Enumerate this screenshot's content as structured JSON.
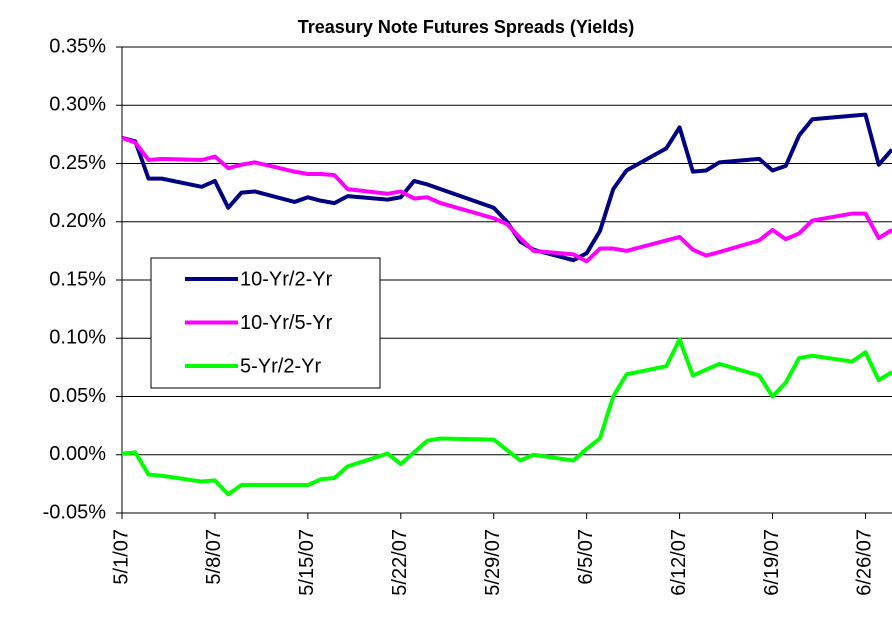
{
  "chart_data": {
    "type": "line",
    "title": "Treasury Note Futures Spreads (Yields)",
    "x": [
      "5/1/07",
      "5/2/07",
      "5/3/07",
      "5/4/07",
      "5/7/07",
      "5/8/07",
      "5/9/07",
      "5/10/07",
      "5/11/07",
      "5/14/07",
      "5/15/07",
      "5/16/07",
      "5/17/07",
      "5/18/07",
      "5/21/07",
      "5/22/07",
      "5/23/07",
      "5/24/07",
      "5/25/07",
      "5/29/07",
      "5/30/07",
      "5/31/07",
      "6/1/07",
      "6/4/07",
      "6/5/07",
      "6/6/07",
      "6/7/07",
      "6/8/07",
      "6/11/07",
      "6/12/07",
      "6/13/07",
      "6/14/07",
      "6/15/07",
      "6/18/07",
      "6/19/07",
      "6/20/07",
      "6/21/07",
      "6/22/07",
      "6/25/07",
      "6/26/07",
      "6/27/07",
      "6/28/07"
    ],
    "series": [
      {
        "name": "10-Yr/2-Yr",
        "color": "#000080",
        "values": [
          0.272,
          0.269,
          0.237,
          0.237,
          0.23,
          0.235,
          0.212,
          0.225,
          0.226,
          0.217,
          0.221,
          0.218,
          0.216,
          0.222,
          0.219,
          0.221,
          0.235,
          0.232,
          0.228,
          0.212,
          0.2,
          0.183,
          0.176,
          0.167,
          0.173,
          0.192,
          0.228,
          0.244,
          0.263,
          0.281,
          0.243,
          0.244,
          0.251,
          0.254,
          0.244,
          0.248,
          0.274,
          0.288,
          0.291,
          0.292,
          0.249,
          0.262
        ]
      },
      {
        "name": "10-Yr/5-Yr",
        "color": "#ff00ff",
        "values": [
          0.272,
          0.268,
          0.253,
          0.254,
          0.253,
          0.256,
          0.246,
          0.249,
          0.251,
          0.243,
          0.241,
          0.241,
          0.24,
          0.228,
          0.224,
          0.226,
          0.22,
          0.221,
          0.216,
          0.203,
          0.198,
          0.186,
          0.175,
          0.172,
          0.166,
          0.177,
          0.177,
          0.175,
          0.184,
          0.187,
          0.176,
          0.171,
          0.174,
          0.184,
          0.193,
          0.185,
          0.19,
          0.201,
          0.207,
          0.207,
          0.186,
          0.193
        ]
      },
      {
        "name": "5-Yr/2-Yr",
        "color": "#00ff00",
        "values": [
          0.001,
          0.002,
          -0.017,
          -0.018,
          -0.023,
          -0.022,
          -0.034,
          -0.026,
          -0.026,
          -0.026,
          -0.026,
          -0.021,
          -0.02,
          -0.01,
          0.001,
          -0.008,
          0.002,
          0.012,
          0.014,
          0.013,
          0.004,
          -0.005,
          0.0,
          -0.005,
          0.005,
          0.014,
          0.05,
          0.069,
          0.076,
          0.099,
          0.068,
          0.073,
          0.078,
          0.068,
          0.05,
          0.062,
          0.083,
          0.085,
          0.08,
          0.088,
          0.064,
          0.071
        ]
      }
    ],
    "xlim": [
      "5/1/07",
      "6/28/07"
    ],
    "xticks": [
      "5/1/07",
      "5/8/07",
      "5/15/07",
      "5/22/07",
      "5/29/07",
      "6/5/07",
      "6/12/07",
      "6/19/07",
      "6/26/07"
    ],
    "ylim": [
      -0.05,
      0.35
    ],
    "yticks": [
      {
        "value": -0.05,
        "label": "-0.05%"
      },
      {
        "value": 0,
        "label": "0.00%"
      },
      {
        "value": 0.05,
        "label": "0.05%"
      },
      {
        "value": 0.1,
        "label": "0.10%"
      },
      {
        "value": 0.15,
        "label": "0.15%"
      },
      {
        "value": 0.2,
        "label": "0.20%"
      },
      {
        "value": 0.25,
        "label": "0.25%"
      },
      {
        "value": 0.3,
        "label": "0.30%"
      },
      {
        "value": 0.35,
        "label": "0.35%"
      }
    ],
    "grid": true,
    "legend": "left"
  }
}
